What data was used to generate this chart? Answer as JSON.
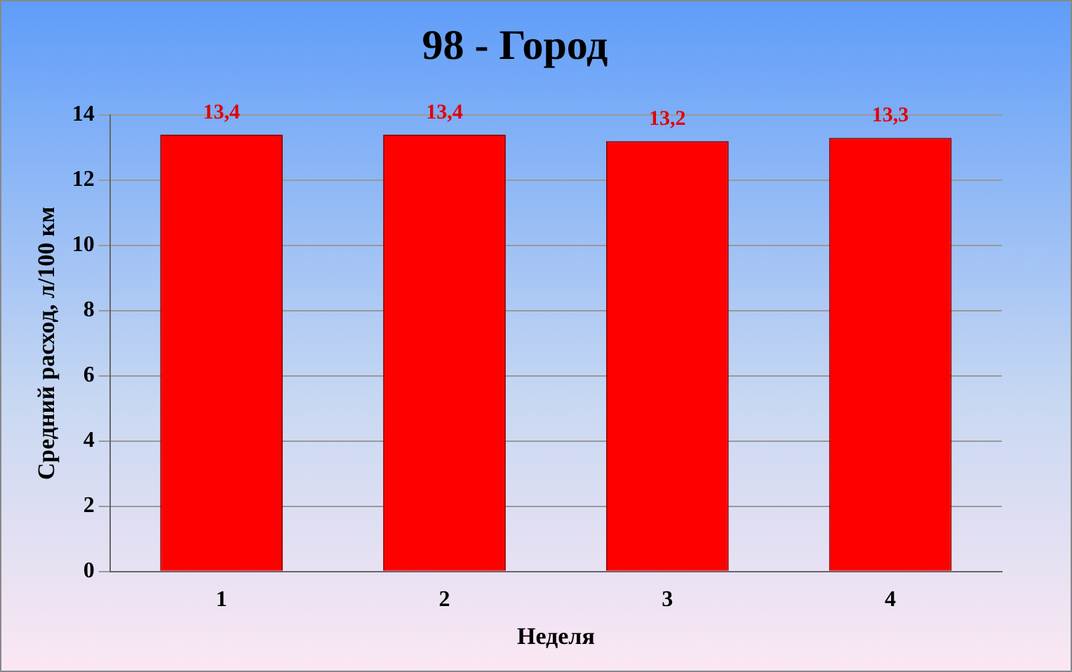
{
  "chart_data": {
    "type": "bar",
    "title": "98 - Город",
    "xlabel": "Неделя",
    "ylabel": "Средний расход, л/100 км",
    "categories": [
      "1",
      "2",
      "3",
      "4"
    ],
    "values": [
      13.4,
      13.4,
      13.2,
      13.3
    ],
    "value_labels": [
      "13,4",
      "13,4",
      "13,2",
      "13,3"
    ],
    "color": "#ff0000",
    "ylim": [
      0,
      14
    ],
    "yticks": [
      0,
      2,
      4,
      6,
      8,
      10,
      12,
      14
    ],
    "grid": "y",
    "legend": false
  }
}
